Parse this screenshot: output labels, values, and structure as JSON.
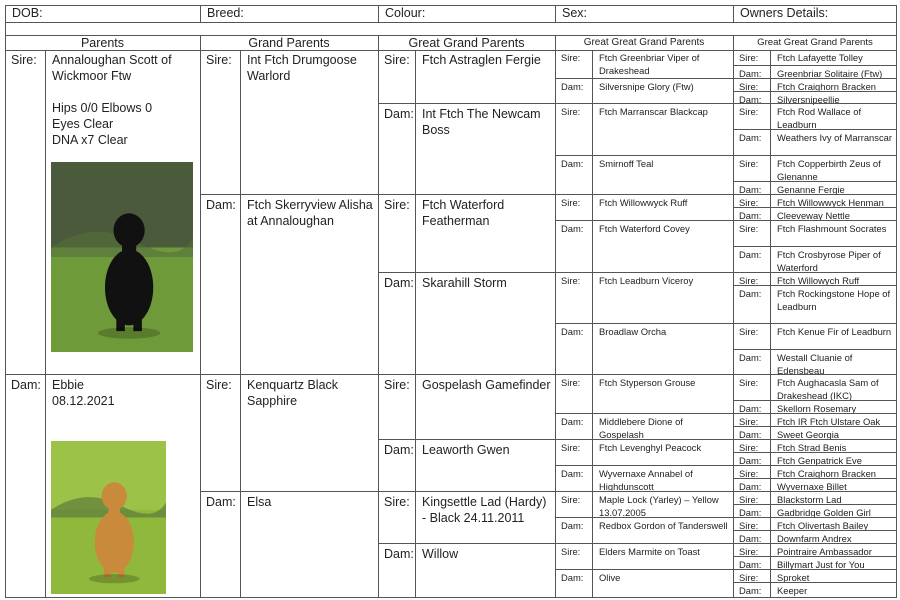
{
  "header": {
    "fields": [
      "DOB:",
      "Breed:",
      "Colour:",
      "Sex:",
      "Owners Details:"
    ]
  },
  "pedigree": {
    "columns": [
      {
        "heading": "Parents",
        "entries": [
          {
            "role": "Sire:",
            "name": "Annaloughan Scott of Wickmoor Ftw",
            "notes": [
              "Hips 0/0 Elbows 0",
              "Eyes Clear",
              "DNA x7 Clear"
            ]
          },
          {
            "role": "Dam:",
            "name": "Ebbie",
            "notes": [
              "08.12.2021"
            ]
          }
        ]
      },
      {
        "heading": "Grand Parents",
        "entries": [
          {
            "role": "Sire:",
            "name": "Int Ftch Drumgoose Warlord"
          },
          {
            "role": "Dam:",
            "name": "Ftch Skerryview Alisha at Annaloughan"
          },
          {
            "role": "Sire:",
            "name": "Kenquartz Black Sapphire"
          },
          {
            "role": "Dam:",
            "name": "Elsa"
          }
        ]
      },
      {
        "heading": "Great Grand Parents",
        "entries": [
          {
            "role": "Sire:",
            "name": "Ftch Astraglen Fergie"
          },
          {
            "role": "Dam:",
            "name": "Int Ftch The Newcam Boss"
          },
          {
            "role": "Sire:",
            "name": "Ftch Waterford Featherman"
          },
          {
            "role": "Dam:",
            "name": "Skarahill Storm"
          },
          {
            "role": "Sire:",
            "name": "Gospelash Gamefinder"
          },
          {
            "role": "Dam:",
            "name": "Leaworth Gwen"
          },
          {
            "role": "Sire:",
            "name": "Kingsettle Lad (Hardy) - Black 24.11.2011"
          },
          {
            "role": "Dam:",
            "name": "Willow"
          }
        ]
      },
      {
        "heading": "Great Great Grand Parents",
        "entries": [
          {
            "role": "Sire:",
            "name": "Ftch Greenbriar Viper of Drakeshead"
          },
          {
            "role": "Dam:",
            "name": "Silversnipe Glory (Ftw)"
          },
          {
            "role": "Sire:",
            "name": "Ftch Marranscar Blackcap"
          },
          {
            "role": "Dam:",
            "name": "Smirnoff Teal"
          },
          {
            "role": "Sire:",
            "name": "Ftch Willowwyck Ruff"
          },
          {
            "role": "Dam:",
            "name": "Ftch Waterford Covey"
          },
          {
            "role": "Sire:",
            "name": "Ftch Leadburn Viceroy"
          },
          {
            "role": "Dam:",
            "name": "Broadlaw Orcha"
          },
          {
            "role": "Sire:",
            "name": "Ftch Styperson Grouse"
          },
          {
            "role": "Dam:",
            "name": "Middlebere Dione of Gospelash"
          },
          {
            "role": "Sire:",
            "name": "Ftch Levenghyl Peacock"
          },
          {
            "role": "Dam:",
            "name": "Wyvernaxe Annabel of Highdunscott"
          },
          {
            "role": "Sire:",
            "name": "Maple Lock (Yarley) – Yellow 13.07.2005"
          },
          {
            "role": "Dam:",
            "name": "Redbox Gordon of Tanderswell"
          },
          {
            "role": "Sire:",
            "name": "Elders Marmite on Toast"
          },
          {
            "role": "Dam:",
            "name": "Olive"
          }
        ]
      },
      {
        "heading": "Great Great Grand Parents",
        "entries": [
          {
            "role": "Sire:",
            "name": "Ftch Lafayette Tolley"
          },
          {
            "role": "Dam:",
            "name": "Greenbriar Solitaire (Ftw)"
          },
          {
            "role": "Sire:",
            "name": "Ftch Craighorn Bracken"
          },
          {
            "role": "Dam:",
            "name": "Silversnipeellie"
          },
          {
            "role": "Sire:",
            "name": "Ftch Rod Wallace of Leadburn"
          },
          {
            "role": "Dam:",
            "name": "Weathers Ivy of Marranscar"
          },
          {
            "role": "Sire:",
            "name": "Ftch Copperbirth Zeus of Glenanne"
          },
          {
            "role": "Dam:",
            "name": "Genanne Fergie"
          },
          {
            "role": "Sire:",
            "name": "Ftch Willowwyck Henman"
          },
          {
            "role": "Dam:",
            "name": "Cleeveway Nettle"
          },
          {
            "role": "Sire:",
            "name": "Ftch Flashmount Socrates"
          },
          {
            "role": "Dam:",
            "name": "Ftch Crosbyrose Piper of Waterford"
          },
          {
            "role": "Sire:",
            "name": "Ftch Willowych Ruff"
          },
          {
            "role": "Dam:",
            "name": "Ftch Rockingstone Hope of Leadburn"
          },
          {
            "role": "Sire:",
            "name": "Ftch Kenue Fir of Leadburn"
          },
          {
            "role": "Dam:",
            "name": "Westall Cluanie of Edensbeau"
          },
          {
            "role": "Sire:",
            "name": "Ftch Aughacasla Sam of Drakeshead (IKC)"
          },
          {
            "role": "Dam:",
            "name": "Skellorn Rosemary"
          },
          {
            "role": "Sire:",
            "name": "Ftch IR Ftch Ulstare Oak"
          },
          {
            "role": "Dam:",
            "name": "Sweet Georgia"
          },
          {
            "role": "Sire:",
            "name": "Ftch Strad Benis"
          },
          {
            "role": "Dam:",
            "name": "Ftch Genpatrick Eve"
          },
          {
            "role": "Sire:",
            "name": "Ftch Craighorn Bracken"
          },
          {
            "role": "Dam:",
            "name": "Wyvernaxe Billet"
          },
          {
            "role": "Sire:",
            "name": "Blackstorm Lad"
          },
          {
            "role": "Dam:",
            "name": "Gadbridge Golden Girl"
          },
          {
            "role": "Sire:",
            "name": "Ftch Olivertash Bailey"
          },
          {
            "role": "Dam:",
            "name": "Downfarm Andrex"
          },
          {
            "role": "Sire:",
            "name": "Pointraire Ambassador"
          },
          {
            "role": "Dam:",
            "name": "Billymart Just for You"
          },
          {
            "role": "Sire:",
            "name": "Sproket"
          },
          {
            "role": "Dam:",
            "name": "Keeper"
          }
        ]
      }
    ]
  }
}
